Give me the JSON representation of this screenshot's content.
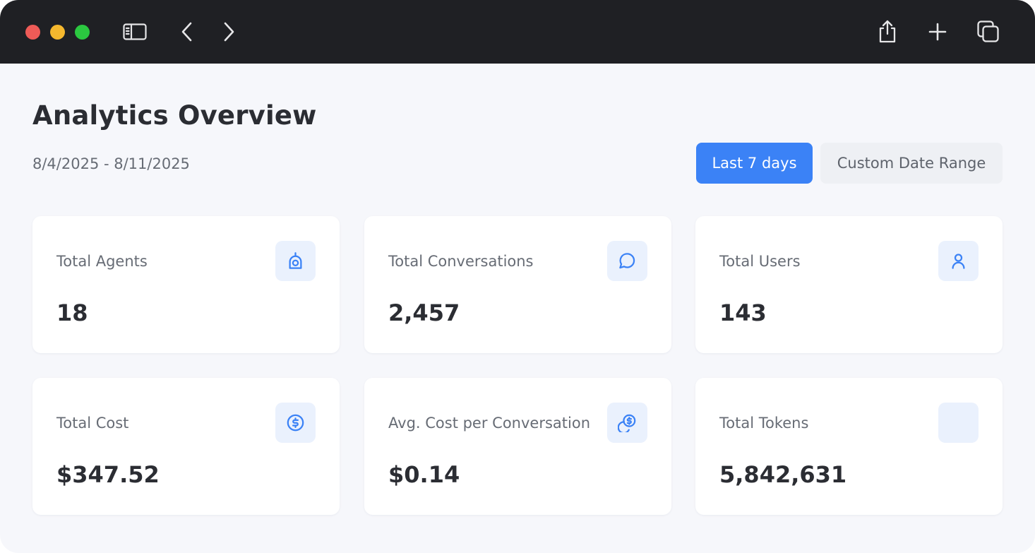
{
  "browser": {
    "icons": [
      "sidebar-icon",
      "back-icon",
      "forward-icon",
      "share-icon",
      "new-tab-icon",
      "tabs-overview-icon"
    ]
  },
  "page": {
    "title": "Analytics Overview",
    "date_range": "8/4/2025 - 8/11/2025",
    "buttons": {
      "last_7_days": "Last 7 days",
      "custom_range": "Custom Date Range"
    },
    "accent_color": "#3b82f6"
  },
  "cards": [
    {
      "label": "Total Agents",
      "value": "18",
      "icon": "bot-icon"
    },
    {
      "label": "Total Conversations",
      "value": "2,457",
      "icon": "chat-bubble-icon"
    },
    {
      "label": "Total Users",
      "value": "143",
      "icon": "user-icon"
    },
    {
      "label": "Total Cost",
      "value": "$347.52",
      "icon": "dollar-circle-icon"
    },
    {
      "label": "Avg. Cost per Conversation",
      "value": "$0.14",
      "icon": "coins-icon"
    },
    {
      "label": "Total Tokens",
      "value": "5,842,631",
      "icon": "tokens-icon"
    }
  ]
}
